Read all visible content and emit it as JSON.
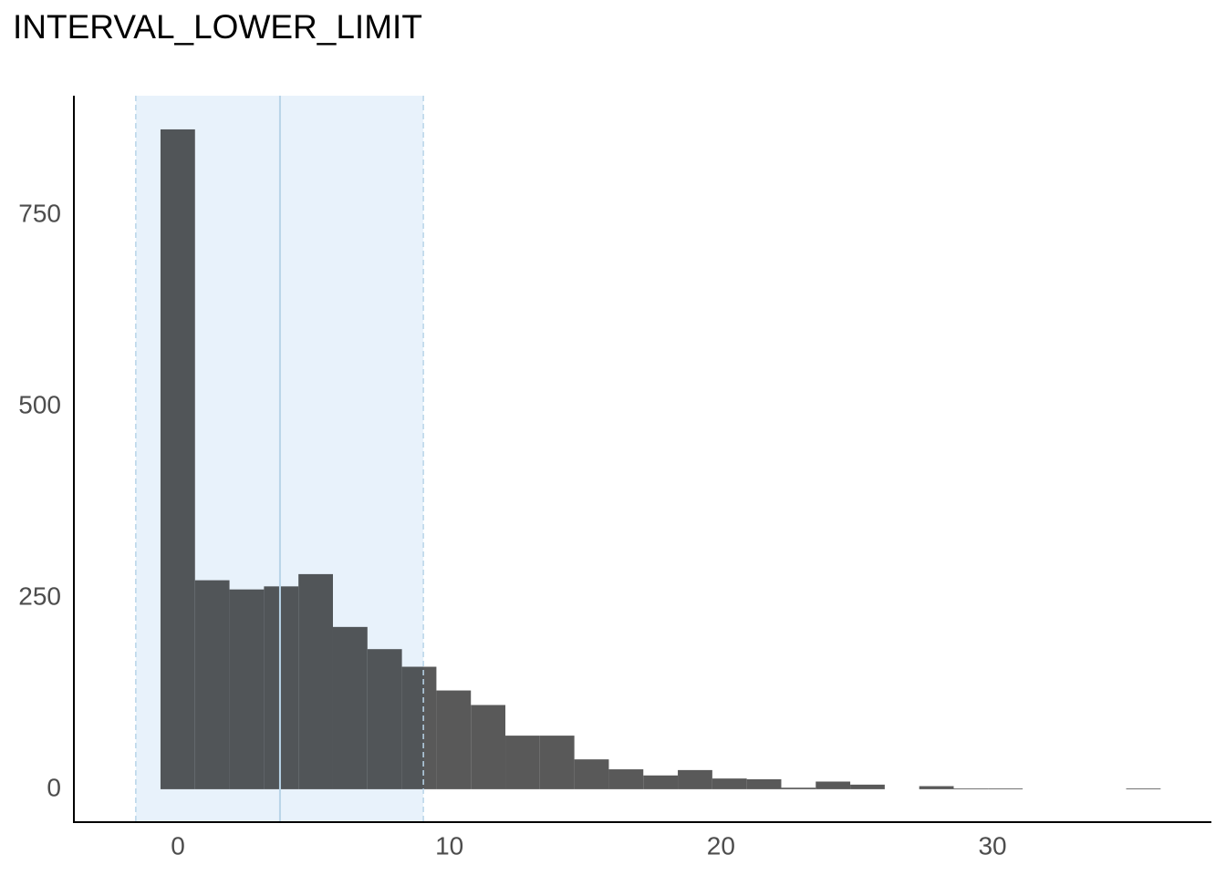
{
  "chart_data": {
    "type": "histogram",
    "title": "INTERVAL_LOWER_LIMIT",
    "bins": [
      -0.64,
      0.63,
      1.9,
      3.17,
      4.44,
      5.71,
      6.98,
      8.25,
      9.52,
      10.79,
      12.06,
      13.33,
      14.6,
      15.87,
      17.14,
      18.41,
      19.68,
      20.95,
      22.22,
      23.49,
      24.76,
      26.03,
      27.3,
      28.57,
      29.84,
      31.11,
      32.38,
      33.65,
      34.92,
      36.19
    ],
    "values": [
      862,
      273,
      261,
      265,
      281,
      212,
      183,
      160,
      129,
      110,
      70,
      70,
      39,
      26,
      18,
      25,
      14,
      13,
      2,
      10,
      6,
      0,
      4,
      1,
      1,
      0,
      0,
      0,
      1
    ],
    "color": "#595959",
    "interval": {
      "lower": -1.55,
      "center": 3.76,
      "upper": 9.04
    },
    "interval_color": "#e8f2fb",
    "interval_line_color": "#b8d4e8",
    "xlim": [
      -3.83,
      38.06
    ],
    "xticks": [
      0,
      10,
      20,
      30
    ],
    "ylim": [
      -43,
      906
    ],
    "yticks": [
      0,
      250,
      500,
      750
    ],
    "grid": false
  }
}
